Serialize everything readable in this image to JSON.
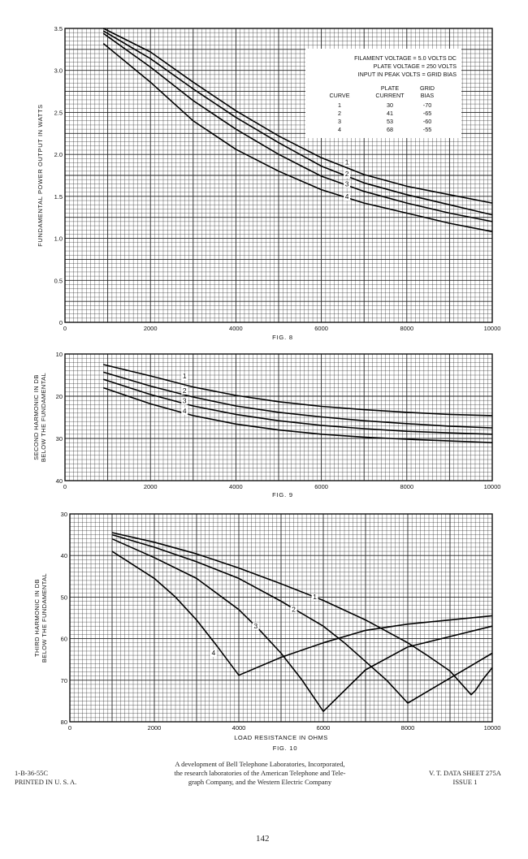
{
  "chart_data": [
    {
      "type": "line",
      "caption": "FIG. 8",
      "ylabel": "FUNDAMENTAL POWER OUTPUT IN WATTS",
      "xlabel": "",
      "xlim": [
        0,
        10000
      ],
      "ylim": [
        0,
        3.5
      ],
      "x_ticks": [
        "0",
        "2000",
        "4000",
        "6000",
        "8000",
        "10000"
      ],
      "y_ticks": [
        "0",
        "0.5",
        "1.0",
        "1.5",
        "2.0",
        "2.5",
        "3.0",
        "3.5"
      ],
      "y_tick_values": [
        0,
        0.5,
        1.0,
        1.5,
        2.0,
        2.5,
        3.0,
        3.5
      ],
      "grid": true,
      "legend_box": {
        "conditions": [
          "FILAMENT VOLTAGE = 5.0 VOLTS DC",
          "PLATE VOLTAGE = 250 VOLTS",
          "INPUT IN PEAK VOLTS = GRID BIAS"
        ],
        "col_curve": "CURVE",
        "col_plate_1": "PLATE",
        "col_plate_2": "CURRENT",
        "col_grid_1": "GRID",
        "col_grid_2": "BIAS",
        "rows": [
          {
            "curve": "1",
            "plate_current": "30",
            "grid_bias": "-70"
          },
          {
            "curve": "2",
            "plate_current": "41",
            "grid_bias": "-65"
          },
          {
            "curve": "3",
            "plate_current": "53",
            "grid_bias": "-60"
          },
          {
            "curve": "4",
            "plate_current": "68",
            "grid_bias": "-55"
          }
        ]
      },
      "series": [
        {
          "name": "1",
          "label_at": [
            6600,
            1.88
          ],
          "x": [
            900,
            2000,
            3000,
            4000,
            5000,
            6000,
            7000,
            8000,
            9000,
            10000
          ],
          "y": [
            3.5,
            3.22,
            2.86,
            2.52,
            2.22,
            1.96,
            1.76,
            1.62,
            1.52,
            1.42
          ]
        },
        {
          "name": "2",
          "label_at": [
            6600,
            1.74
          ],
          "x": [
            900,
            2000,
            3000,
            4000,
            5000,
            6000,
            7000,
            8000,
            9000,
            10000
          ],
          "y": [
            3.47,
            3.14,
            2.78,
            2.44,
            2.14,
            1.86,
            1.66,
            1.52,
            1.4,
            1.28
          ]
        },
        {
          "name": "3",
          "label_at": [
            6600,
            1.62
          ],
          "x": [
            900,
            2000,
            3000,
            4000,
            5000,
            6000,
            7000,
            8000,
            9000,
            10000
          ],
          "y": [
            3.44,
            3.04,
            2.64,
            2.3,
            2.0,
            1.74,
            1.56,
            1.42,
            1.3,
            1.2
          ]
        },
        {
          "name": "4",
          "label_at": [
            6600,
            1.47
          ],
          "x": [
            900,
            2000,
            3000,
            4000,
            5000,
            6000,
            7000,
            8000,
            9000,
            10000
          ],
          "y": [
            3.32,
            2.86,
            2.4,
            2.06,
            1.8,
            1.58,
            1.42,
            1.3,
            1.18,
            1.08
          ]
        }
      ]
    },
    {
      "type": "line",
      "caption": "FIG. 9",
      "ylabel": "SECOND HARMONIC IN DB BELOW THE FUNDAMENTAL",
      "xlabel": "",
      "xlim": [
        0,
        10000
      ],
      "ylim": [
        10,
        40
      ],
      "y_inverted": true,
      "x_ticks": [
        "0",
        "2000",
        "4000",
        "6000",
        "8000",
        "10000"
      ],
      "y_ticks": [
        "10",
        "20",
        "30",
        "40"
      ],
      "y_tick_values": [
        10,
        20,
        30,
        40
      ],
      "grid": true,
      "series": [
        {
          "name": "1",
          "label_at": [
            2800,
            15.8
          ],
          "x": [
            900,
            2000,
            3000,
            4000,
            5000,
            6000,
            7000,
            8000,
            9000,
            10000
          ],
          "y": [
            12.5,
            15.2,
            17.8,
            19.8,
            21.3,
            22.4,
            23.2,
            23.8,
            24.3,
            24.6
          ]
        },
        {
          "name": "2",
          "label_at": [
            2800,
            19.2
          ],
          "x": [
            900,
            2000,
            3000,
            4000,
            5000,
            6000,
            7000,
            8000,
            9000,
            10000
          ],
          "y": [
            14.3,
            17.6,
            20.2,
            22.3,
            23.8,
            24.9,
            25.8,
            26.5,
            27.1,
            27.5
          ]
        },
        {
          "name": "3",
          "label_at": [
            2800,
            21.6
          ],
          "x": [
            900,
            2000,
            3000,
            4000,
            5000,
            6000,
            7000,
            8000,
            9000,
            10000
          ],
          "y": [
            16.0,
            19.6,
            22.3,
            24.3,
            25.8,
            26.9,
            27.7,
            28.3,
            28.7,
            29.0
          ]
        },
        {
          "name": "4",
          "label_at": [
            2800,
            24.0
          ],
          "x": [
            900,
            2000,
            3000,
            4000,
            5000,
            6000,
            7000,
            8000,
            9000,
            10000
          ],
          "y": [
            18.0,
            21.8,
            24.6,
            26.6,
            28.0,
            29.0,
            29.7,
            30.2,
            30.6,
            31.0
          ]
        }
      ]
    },
    {
      "type": "line",
      "caption": "FIG. 10",
      "ylabel": "THIRD HARMONIC IN DB BELOW THE FUNDAMENTAL",
      "xlabel": "LOAD RESISTANCE IN OHMS",
      "xlim": [
        0,
        10000
      ],
      "ylim": [
        30,
        80
      ],
      "y_inverted": true,
      "x_ticks": [
        "0",
        "2000",
        "4000",
        "6000",
        "8000",
        "10000"
      ],
      "y_ticks": [
        "30",
        "40",
        "50",
        "60",
        "70",
        "80"
      ],
      "y_tick_values": [
        30,
        40,
        50,
        60,
        70,
        80
      ],
      "grid": true,
      "series": [
        {
          "name": "1",
          "label_at": [
            5800,
            50.5
          ],
          "x": [
            1000,
            2000,
            3000,
            4000,
            5000,
            6000,
            7000,
            8000,
            8500,
            9000,
            9500,
            9600,
            9800,
            10000
          ],
          "y": [
            34.5,
            36.8,
            39.6,
            43.0,
            46.8,
            50.8,
            55.5,
            61.0,
            64.3,
            67.8,
            73.5,
            72.5,
            69.5,
            67.0
          ]
        },
        {
          "name": "2",
          "label_at": [
            5300,
            53.5
          ],
          "x": [
            1000,
            2000,
            3000,
            4000,
            5000,
            6000,
            6500,
            7000,
            7500,
            8000,
            8500,
            9000,
            9500,
            10000
          ],
          "y": [
            35.0,
            38.0,
            41.5,
            45.5,
            51.0,
            57.0,
            61.0,
            65.5,
            70.0,
            75.5,
            72.5,
            69.5,
            66.5,
            63.5
          ]
        },
        {
          "name": "3",
          "label_at": [
            4400,
            57.5
          ],
          "x": [
            1000,
            2000,
            3000,
            4000,
            4500,
            5000,
            5500,
            6000,
            7000,
            8000,
            9000,
            10000
          ],
          "y": [
            36.0,
            40.5,
            45.5,
            53.0,
            58.0,
            63.5,
            70.0,
            77.5,
            67.5,
            62.0,
            59.5,
            57.0
          ]
        },
        {
          "name": "4",
          "label_at": [
            3400,
            64.0
          ],
          "x": [
            1000,
            2000,
            2500,
            3000,
            3500,
            4000,
            5000,
            6000,
            7000,
            8000,
            9000,
            10000
          ],
          "y": [
            39.0,
            45.5,
            50.0,
            55.5,
            62.0,
            68.8,
            64.5,
            61.0,
            58.0,
            56.5,
            55.5,
            54.5
          ]
        }
      ]
    }
  ],
  "footer": {
    "left_line1": "1-B-36-55C",
    "left_line2": "PRINTED IN U. S. A.",
    "center_line1": "A development of Bell Telephone Laboratories, Incorporated,",
    "center_line2": "the research laboratories of the American Telephone and Tele-",
    "center_line3": "graph Company, and the Western Electric Company",
    "right_line1": "V. T. DATA SHEET 275A",
    "right_line2": "ISSUE 1"
  },
  "page_number": "142"
}
